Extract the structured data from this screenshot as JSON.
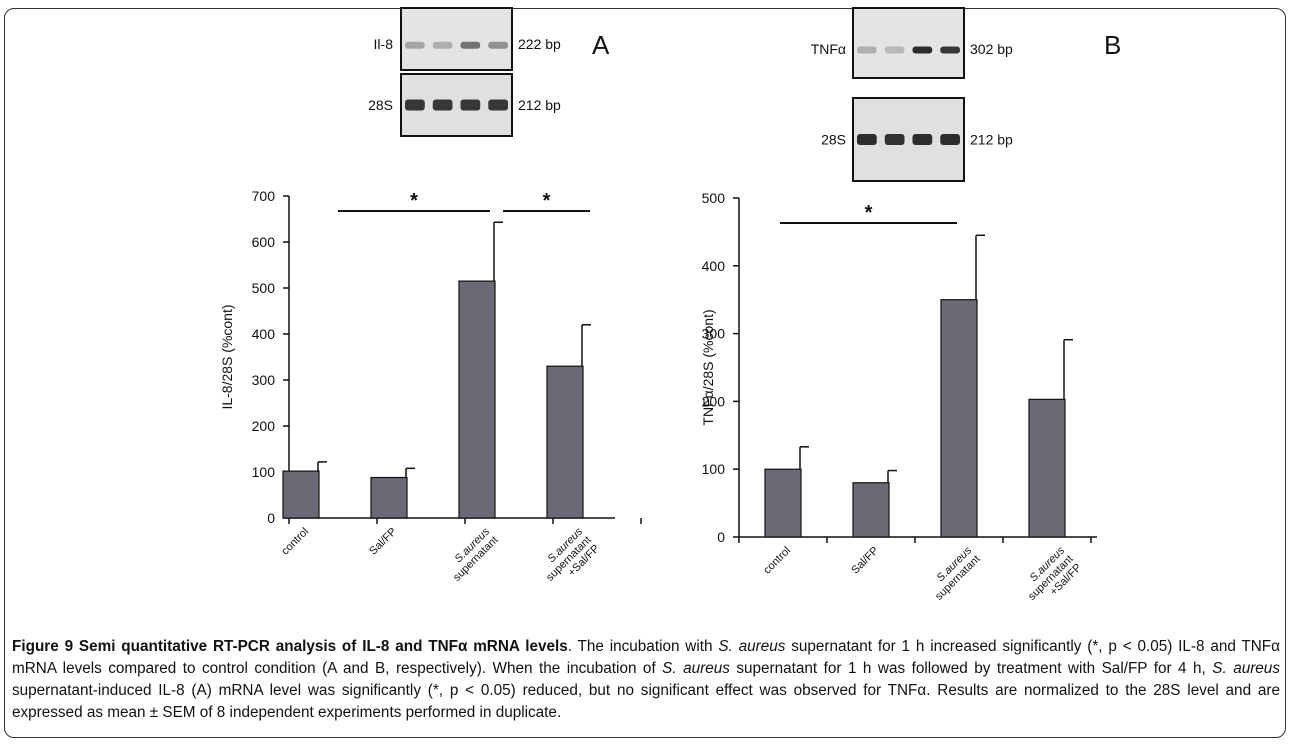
{
  "chart_data": [
    {
      "panel": "A",
      "type": "bar",
      "categories": [
        "control",
        "Sal/FP",
        "S.aureus supernatant",
        "S.aureus supernatant +Sal/FP"
      ],
      "values": [
        102,
        88,
        515,
        330
      ],
      "errors": [
        20,
        20,
        128,
        90
      ],
      "ylabel": "IL-8/28S (%cont)",
      "ylim": [
        0,
        700
      ],
      "yticks": [
        0,
        100,
        200,
        300,
        400,
        500,
        600,
        700
      ],
      "bar_color": "#6a6a76",
      "significance": [
        {
          "from": 0,
          "to": 2,
          "label": "*"
        },
        {
          "from": 2,
          "to": 3,
          "label": "*"
        }
      ],
      "gel": {
        "target_label": "Il-8",
        "target_size": "222 bp",
        "ref_label": "28S",
        "ref_size": "212 bp",
        "target_band_intensity": [
          0.3,
          0.25,
          0.55,
          0.4
        ],
        "ref_band_intensity": [
          0.85,
          0.85,
          0.85,
          0.85
        ]
      }
    },
    {
      "panel": "B",
      "type": "bar",
      "categories": [
        "control",
        "Sal/FP",
        "S.aureus supernatant",
        "S.aureus supernatant +Sal/FP"
      ],
      "values": [
        100,
        80,
        350,
        203
      ],
      "errors": [
        33,
        18,
        95,
        88
      ],
      "ylabel": "TNFα/28S (%cont)",
      "ylim": [
        0,
        500
      ],
      "yticks": [
        0,
        100,
        200,
        300,
        400,
        500
      ],
      "bar_color": "#6a6a76",
      "significance": [
        {
          "from": 0,
          "to": 2,
          "label": "*"
        }
      ],
      "gel": {
        "target_label": "TNFα",
        "target_size": "302 bp",
        "ref_label": "28S",
        "ref_size": "212 bp",
        "target_band_intensity": [
          0.25,
          0.2,
          0.9,
          0.85
        ],
        "ref_band_intensity": [
          0.9,
          0.88,
          0.9,
          0.9
        ]
      }
    }
  ],
  "caption": {
    "title": "Figure 9 Semi quantitative RT-PCR analysis of IL-8 and TNFα mRNA levels",
    "parts": [
      {
        "t": ". The incubation with "
      },
      {
        "t": "S. aureus",
        "i": true
      },
      {
        "t": " supernatant for 1 h increased significantly (*, p < 0.05) IL-8 and TNFα mRNA levels compared to control condition (A and B, respectively). When the incubation of "
      },
      {
        "t": "S. aureus",
        "i": true
      },
      {
        "t": " supernatant for 1 h was followed by treatment with Sal/FP for 4 h, "
      },
      {
        "t": "S. aureus",
        "i": true
      },
      {
        "t": " supernatant-induced IL-8 (A) mRNA level was significantly (*, p < 0.05) reduced, but no significant effect was observed for TNFα. Results are normalized to the 28S level and are expressed as mean ± SEM of 8 independent experiments performed in duplicate."
      }
    ]
  }
}
